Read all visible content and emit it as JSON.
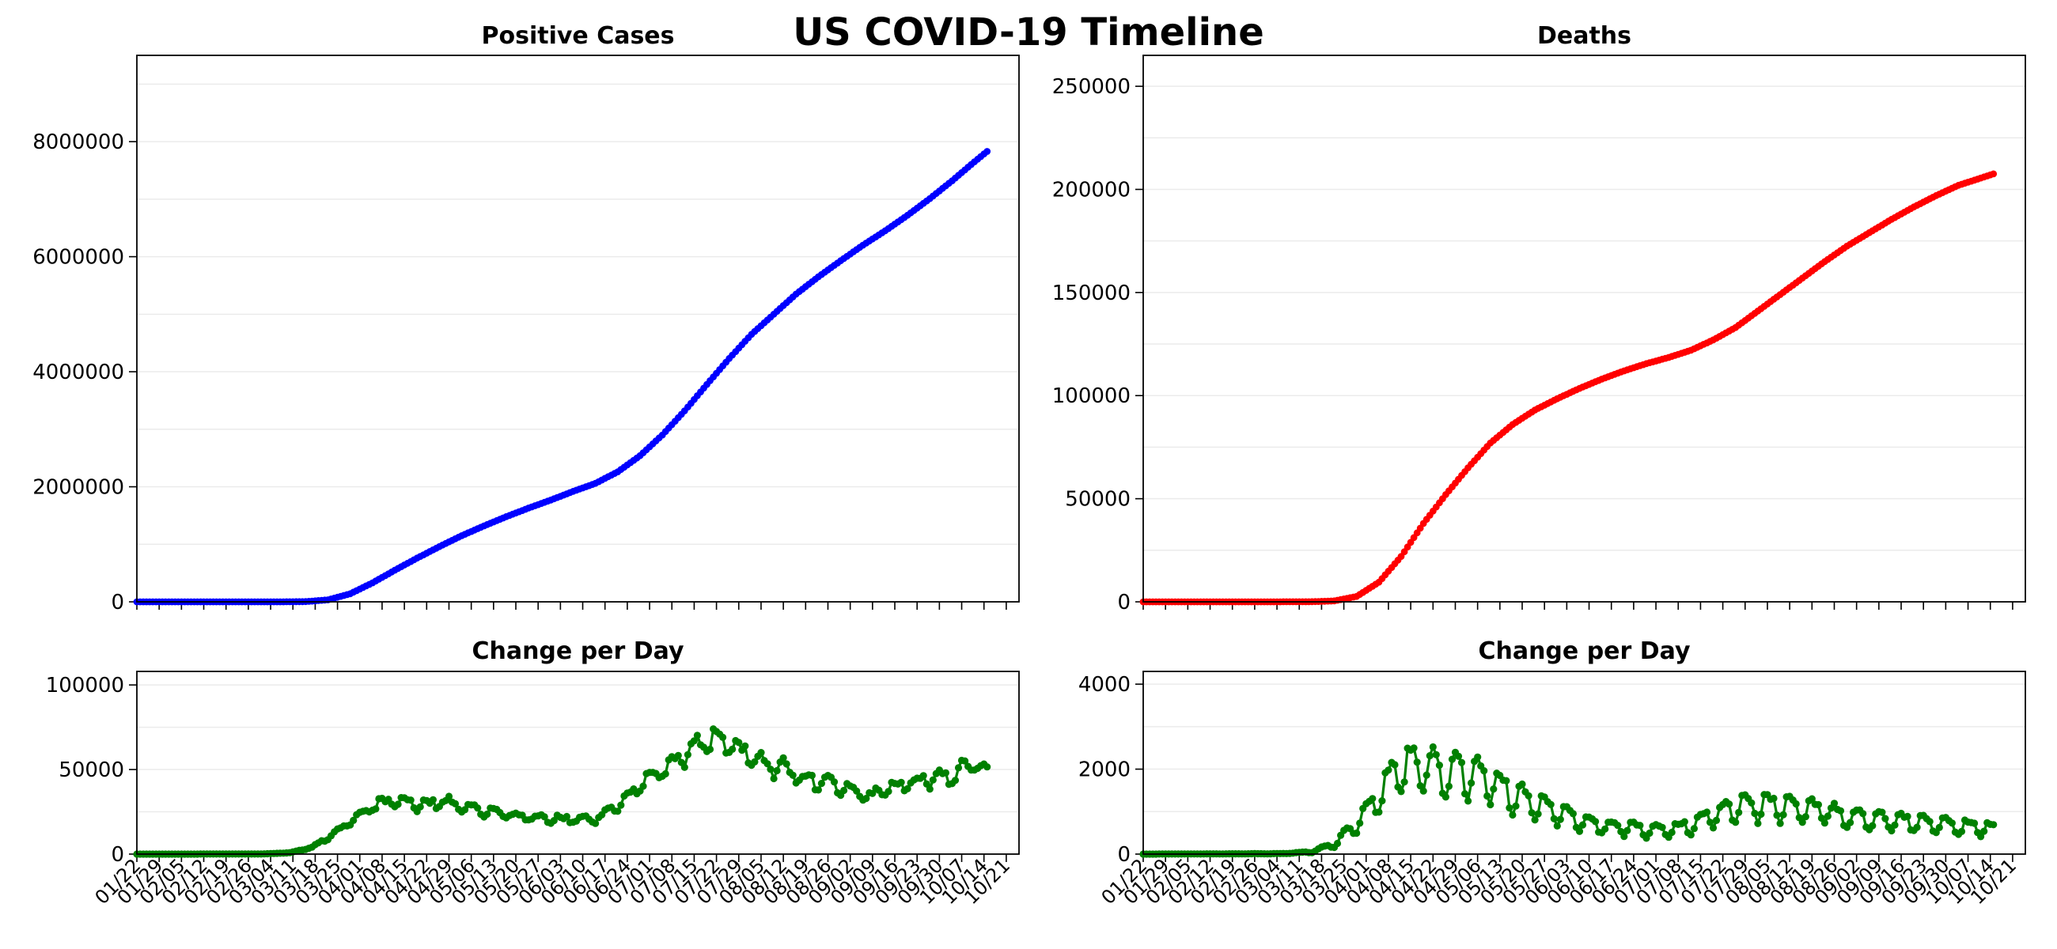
{
  "figure": {
    "title": "US COVID-19 Timeline"
  },
  "colors": {
    "cases": "#0000ff",
    "deaths": "#ff0000",
    "change": "#008000",
    "grid": "#ebebeb",
    "axis": "#000000"
  },
  "chart_data": [
    {
      "id": "cases",
      "type": "line",
      "title": "Positive Cases",
      "xlabel": "",
      "ylabel": "",
      "start_date": "2020-01-22",
      "end_date": "2020-10-15",
      "xlim": [
        "2020-01-22",
        "2020-10-25"
      ],
      "ylim": [
        0,
        9500000
      ],
      "yticks": [
        0,
        2000000,
        4000000,
        6000000,
        8000000
      ],
      "ytick_labels": [
        "0",
        "2000000",
        "4000000",
        "6000000",
        "8000000"
      ],
      "grid": true,
      "series": [
        {
          "color": "#0000ff",
          "markers": true,
          "keypoints": [
            [
              "2020-01-22",
              0
            ],
            [
              "2020-03-01",
              80
            ],
            [
              "2020-03-08",
              500
            ],
            [
              "2020-03-15",
              3500
            ],
            [
              "2020-03-22",
              35000
            ],
            [
              "2020-03-29",
              140000
            ],
            [
              "2020-04-05",
              330000
            ],
            [
              "2020-04-12",
              550000
            ],
            [
              "2020-04-19",
              760000
            ],
            [
              "2020-04-26",
              960000
            ],
            [
              "2020-05-03",
              1150000
            ],
            [
              "2020-05-10",
              1320000
            ],
            [
              "2020-05-17",
              1480000
            ],
            [
              "2020-05-24",
              1630000
            ],
            [
              "2020-05-31",
              1770000
            ],
            [
              "2020-06-07",
              1920000
            ],
            [
              "2020-06-14",
              2060000
            ],
            [
              "2020-06-21",
              2260000
            ],
            [
              "2020-06-28",
              2540000
            ],
            [
              "2020-07-05",
              2900000
            ],
            [
              "2020-07-12",
              3320000
            ],
            [
              "2020-07-19",
              3780000
            ],
            [
              "2020-07-26",
              4230000
            ],
            [
              "2020-08-02",
              4650000
            ],
            [
              "2020-08-09",
              5000000
            ],
            [
              "2020-08-16",
              5350000
            ],
            [
              "2020-08-23",
              5650000
            ],
            [
              "2020-08-30",
              5930000
            ],
            [
              "2020-09-06",
              6200000
            ],
            [
              "2020-09-13",
              6450000
            ],
            [
              "2020-09-20",
              6720000
            ],
            [
              "2020-09-27",
              7010000
            ],
            [
              "2020-10-04",
              7320000
            ],
            [
              "2020-10-11",
              7650000
            ],
            [
              "2020-10-15",
              7830000
            ]
          ]
        }
      ]
    },
    {
      "id": "deaths",
      "type": "line",
      "title": "Deaths",
      "xlabel": "",
      "ylabel": "",
      "start_date": "2020-01-22",
      "end_date": "2020-10-15",
      "xlim": [
        "2020-01-22",
        "2020-10-25"
      ],
      "ylim": [
        0,
        265000
      ],
      "yticks": [
        0,
        50000,
        100000,
        150000,
        200000,
        250000
      ],
      "ytick_labels": [
        "0",
        "50000",
        "100000",
        "150000",
        "200000",
        "250000"
      ],
      "grid": true,
      "series": [
        {
          "color": "#ff0000",
          "markers": true,
          "keypoints": [
            [
              "2020-01-22",
              0
            ],
            [
              "2020-03-01",
              2
            ],
            [
              "2020-03-15",
              60
            ],
            [
              "2020-03-22",
              450
            ],
            [
              "2020-03-29",
              2600
            ],
            [
              "2020-04-05",
              9500
            ],
            [
              "2020-04-12",
              22000
            ],
            [
              "2020-04-19",
              38000
            ],
            [
              "2020-04-26",
              52000
            ],
            [
              "2020-05-03",
              65000
            ],
            [
              "2020-05-10",
              77000
            ],
            [
              "2020-05-17",
              86000
            ],
            [
              "2020-05-24",
              93000
            ],
            [
              "2020-05-31",
              98500
            ],
            [
              "2020-06-07",
              103500
            ],
            [
              "2020-06-14",
              108000
            ],
            [
              "2020-06-21",
              112000
            ],
            [
              "2020-06-28",
              115500
            ],
            [
              "2020-07-05",
              118500
            ],
            [
              "2020-07-12",
              122000
            ],
            [
              "2020-07-19",
              127000
            ],
            [
              "2020-07-26",
              133000
            ],
            [
              "2020-08-02",
              141000
            ],
            [
              "2020-08-09",
              149000
            ],
            [
              "2020-08-16",
              157000
            ],
            [
              "2020-08-23",
              165000
            ],
            [
              "2020-08-30",
              172500
            ],
            [
              "2020-09-06",
              179000
            ],
            [
              "2020-09-13",
              185500
            ],
            [
              "2020-09-20",
              191500
            ],
            [
              "2020-09-27",
              197000
            ],
            [
              "2020-10-04",
              202000
            ],
            [
              "2020-10-11",
              205500
            ],
            [
              "2020-10-15",
              207500
            ]
          ]
        }
      ]
    },
    {
      "id": "cases-change",
      "type": "line",
      "title": "Change per Day",
      "xlabel": "",
      "ylabel": "",
      "start_date": "2020-01-22",
      "end_date": "2020-10-15",
      "xlim": [
        "2020-01-22",
        "2020-10-25"
      ],
      "ylim": [
        0,
        108000
      ],
      "yticks": [
        0,
        50000,
        100000
      ],
      "ytick_labels": [
        "0",
        "50000",
        "100000"
      ],
      "grid": true,
      "series": [
        {
          "color": "#008000",
          "markers": true,
          "weekly_variation": 0.12,
          "noise": 0.05,
          "keypoints": [
            [
              "2020-01-22",
              0
            ],
            [
              "2020-03-01",
              50
            ],
            [
              "2020-03-10",
              800
            ],
            [
              "2020-03-17",
              4000
            ],
            [
              "2020-03-24",
              12000
            ],
            [
              "2020-03-31",
              22000
            ],
            [
              "2020-04-07",
              30000
            ],
            [
              "2020-04-14",
              31000
            ],
            [
              "2020-04-21",
              29000
            ],
            [
              "2020-04-28",
              31000
            ],
            [
              "2020-05-05",
              27000
            ],
            [
              "2020-05-12",
              25000
            ],
            [
              "2020-05-19",
              23000
            ],
            [
              "2020-05-26",
              21000
            ],
            [
              "2020-06-02",
              21000
            ],
            [
              "2020-06-09",
              20000
            ],
            [
              "2020-06-16",
              22000
            ],
            [
              "2020-06-23",
              32000
            ],
            [
              "2020-06-30",
              44000
            ],
            [
              "2020-07-07",
              53000
            ],
            [
              "2020-07-14",
              63000
            ],
            [
              "2020-07-21",
              68000
            ],
            [
              "2020-07-28",
              63000
            ],
            [
              "2020-08-04",
              55000
            ],
            [
              "2020-08-11",
              52000
            ],
            [
              "2020-08-18",
              45000
            ],
            [
              "2020-08-25",
              42000
            ],
            [
              "2020-09-01",
              40000
            ],
            [
              "2020-09-08",
              34000
            ],
            [
              "2020-09-15",
              39000
            ],
            [
              "2020-09-22",
              43000
            ],
            [
              "2020-09-29",
              45000
            ],
            [
              "2020-10-06",
              48000
            ],
            [
              "2020-10-11",
              55000
            ],
            [
              "2020-10-15",
              47000
            ]
          ]
        }
      ]
    },
    {
      "id": "deaths-change",
      "type": "line",
      "title": "Change per Day",
      "xlabel": "",
      "ylabel": "",
      "start_date": "2020-01-22",
      "end_date": "2020-10-15",
      "xlim": [
        "2020-01-22",
        "2020-10-25"
      ],
      "ylim": [
        0,
        4300
      ],
      "yticks": [
        0,
        2000,
        4000
      ],
      "ytick_labels": [
        "0",
        "2000",
        "4000"
      ],
      "grid": true,
      "series": [
        {
          "color": "#008000",
          "markers": true,
          "weekly_variation": 0.35,
          "noise": 0.06,
          "keypoints": [
            [
              "2020-01-22",
              0
            ],
            [
              "2020-03-05",
              10
            ],
            [
              "2020-03-15",
              50
            ],
            [
              "2020-03-22",
              250
            ],
            [
              "2020-03-29",
              700
            ],
            [
              "2020-04-05",
              1400
            ],
            [
              "2020-04-10",
              1900
            ],
            [
              "2020-04-15",
              2100
            ],
            [
              "2020-04-22",
              2000
            ],
            [
              "2020-04-29",
              1900
            ],
            [
              "2020-05-06",
              1900
            ],
            [
              "2020-05-13",
              1600
            ],
            [
              "2020-05-20",
              1300
            ],
            [
              "2020-05-27",
              1100
            ],
            [
              "2020-06-03",
              900
            ],
            [
              "2020-06-10",
              750
            ],
            [
              "2020-06-17",
              650
            ],
            [
              "2020-06-24",
              600
            ],
            [
              "2020-07-01",
              550
            ],
            [
              "2020-07-08",
              600
            ],
            [
              "2020-07-15",
              800
            ],
            [
              "2020-07-22",
              1000
            ],
            [
              "2020-07-29",
              1150
            ],
            [
              "2020-08-05",
              1150
            ],
            [
              "2020-08-12",
              1100
            ],
            [
              "2020-08-19",
              1050
            ],
            [
              "2020-08-26",
              950
            ],
            [
              "2020-09-02",
              850
            ],
            [
              "2020-09-09",
              800
            ],
            [
              "2020-09-16",
              780
            ],
            [
              "2020-09-23",
              740
            ],
            [
              "2020-09-30",
              700
            ],
            [
              "2020-10-07",
              650
            ],
            [
              "2020-10-15",
              600
            ]
          ]
        }
      ]
    }
  ],
  "xticks": {
    "dates": [
      "2020-01-22",
      "2020-01-29",
      "2020-02-05",
      "2020-02-12",
      "2020-02-19",
      "2020-02-26",
      "2020-03-04",
      "2020-03-11",
      "2020-03-18",
      "2020-03-25",
      "2020-04-01",
      "2020-04-08",
      "2020-04-15",
      "2020-04-22",
      "2020-04-29",
      "2020-05-06",
      "2020-05-13",
      "2020-05-20",
      "2020-05-27",
      "2020-06-03",
      "2020-06-10",
      "2020-06-17",
      "2020-06-24",
      "2020-07-01",
      "2020-07-08",
      "2020-07-15",
      "2020-07-22",
      "2020-07-29",
      "2020-08-05",
      "2020-08-12",
      "2020-08-19",
      "2020-08-26",
      "2020-09-02",
      "2020-09-09",
      "2020-09-16",
      "2020-09-23",
      "2020-09-30",
      "2020-10-07",
      "2020-10-14",
      "2020-10-21"
    ],
    "labels": [
      "01/22",
      "01/29",
      "02/05",
      "02/12",
      "02/19",
      "02/26",
      "03/04",
      "03/11",
      "03/18",
      "03/25",
      "04/01",
      "04/08",
      "04/15",
      "04/22",
      "04/29",
      "05/06",
      "05/13",
      "05/20",
      "05/27",
      "06/03",
      "06/10",
      "06/17",
      "06/24",
      "07/01",
      "07/08",
      "07/15",
      "07/22",
      "07/29",
      "08/05",
      "08/12",
      "08/19",
      "08/26",
      "09/02",
      "09/09",
      "09/16",
      "09/23",
      "09/30",
      "10/07",
      "10/14",
      "10/21"
    ]
  }
}
